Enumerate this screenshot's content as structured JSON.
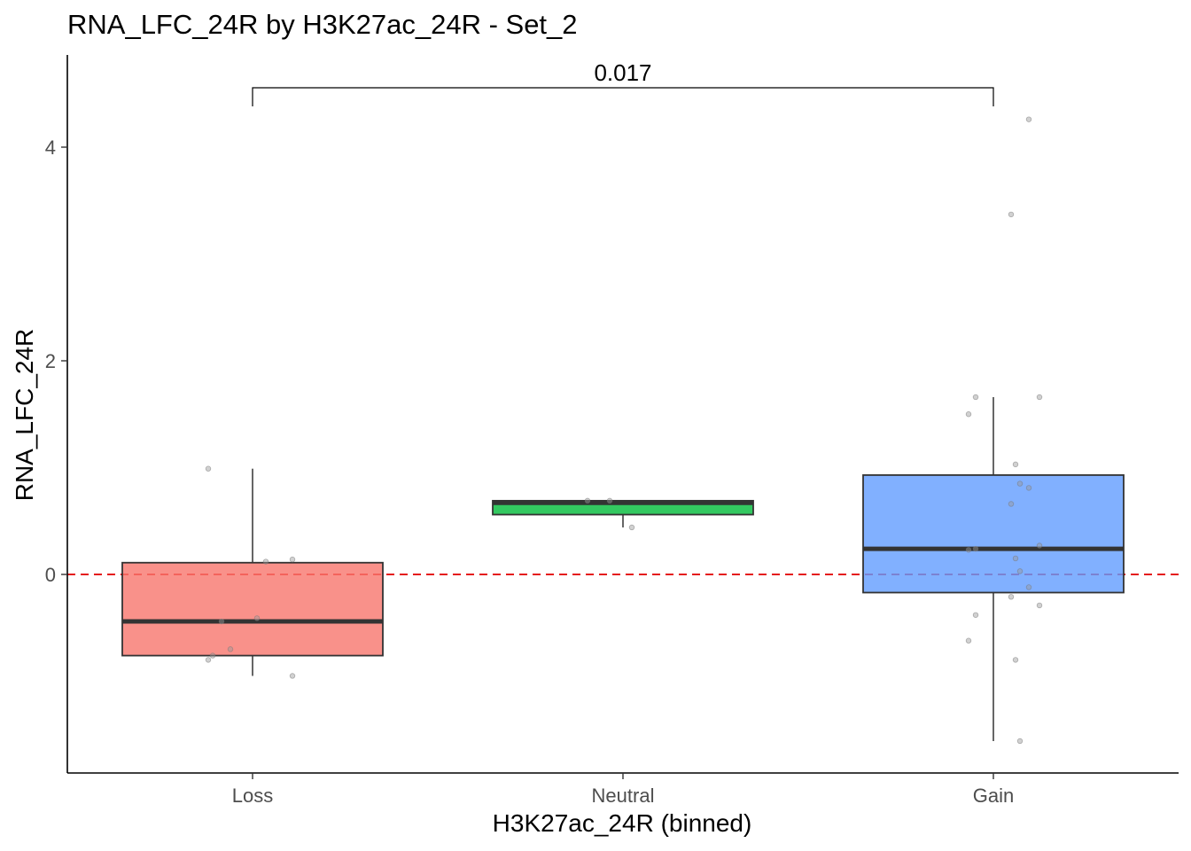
{
  "chart_data": {
    "type": "box",
    "title": "RNA_LFC_24R by H3K27ac_24R - Set_2",
    "xlabel": "H3K27ac_24R (binned)",
    "ylabel": "RNA_LFC_24R",
    "categories": [
      "Loss",
      "Neutral",
      "Gain"
    ],
    "ylim": [
      -1.86,
      4.86
    ],
    "yticks": [
      0,
      2,
      4
    ],
    "grid": false,
    "legend": "none",
    "reference_line": {
      "y": 0,
      "color": "#e41a1c",
      "style": "dashed"
    },
    "boxes": [
      {
        "category": "Loss",
        "fill": "#f8766d",
        "whisker_low": -0.95,
        "q1": -0.76,
        "median": -0.44,
        "q3": 0.11,
        "whisker_high": 0.99
      },
      {
        "category": "Neutral",
        "fill": "#00ba38",
        "whisker_low": 0.44,
        "q1": 0.56,
        "median": 0.67,
        "q3": 0.69,
        "whisker_high": 0.69
      },
      {
        "category": "Gain",
        "fill": "#619cff",
        "whisker_low": -1.56,
        "q1": -0.17,
        "median": 0.24,
        "q3": 0.93,
        "whisker_high": 1.66
      }
    ],
    "points": [
      {
        "category": "Loss",
        "values": [
          0.99,
          0.14,
          0.12,
          -0.41,
          -0.44,
          -0.7,
          -0.76,
          -0.8,
          -0.95
        ]
      },
      {
        "category": "Neutral",
        "values": [
          0.69,
          0.69,
          0.44
        ]
      },
      {
        "category": "Gain",
        "values": [
          4.26,
          3.37,
          1.66,
          1.66,
          1.5,
          1.03,
          0.85,
          0.81,
          0.66,
          0.27,
          0.24,
          0.23,
          0.15,
          0.03,
          -0.12,
          -0.21,
          -0.29,
          -0.38,
          -0.62,
          -0.8,
          -1.56
        ]
      }
    ],
    "comparisons": [
      {
        "from": "Loss",
        "to": "Gain",
        "label": "0.017"
      }
    ]
  }
}
